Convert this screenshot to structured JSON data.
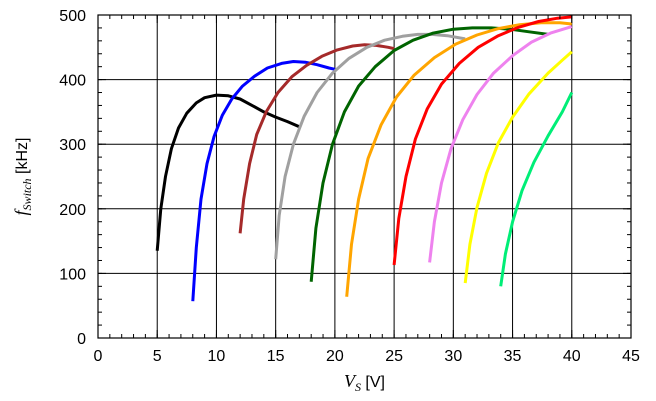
{
  "chart_data": {
    "type": "line",
    "title": "",
    "xlabel": {
      "main": "V",
      "sub": "S",
      "unit": " [V]"
    },
    "ylabel": {
      "main": "f",
      "sub": "Switch",
      "unit": " [kHz]"
    },
    "xlim": [
      0,
      45
    ],
    "ylim": [
      0,
      500
    ],
    "xticks": [
      0,
      5,
      10,
      15,
      20,
      25,
      30,
      35,
      40,
      45
    ],
    "yticks": [
      0,
      100,
      200,
      300,
      400,
      500
    ],
    "grid": true,
    "legend": "none",
    "series": [
      {
        "color": "#000000",
        "x": [
          5,
          5.3,
          5.7,
          6.2,
          6.8,
          7.5,
          8.3,
          9.0,
          10.0,
          11.0,
          12.0,
          13.0,
          14.0,
          15.0,
          16.0,
          17.0
        ],
        "y": [
          135,
          200,
          250,
          293,
          325,
          348,
          364,
          372,
          376,
          375,
          370,
          360,
          350,
          342,
          335,
          327
        ]
      },
      {
        "color": "#0000ff",
        "x": [
          8,
          8.3,
          8.7,
          9.2,
          9.8,
          10.5,
          11.3,
          12.2,
          13.2,
          14.3,
          15.5,
          16.5,
          17.5,
          18.5,
          19.5,
          20.0
        ],
        "y": [
          57,
          140,
          215,
          270,
          312,
          345,
          370,
          390,
          405,
          418,
          425,
          428,
          427,
          423,
          418,
          416
        ]
      },
      {
        "color": "#a52a2a",
        "x": [
          12,
          12.3,
          12.8,
          13.4,
          14.2,
          15.2,
          16.4,
          17.6,
          18.9,
          20.2,
          21.5,
          22.5,
          23.5,
          24.5,
          25.0
        ],
        "y": [
          162,
          215,
          270,
          315,
          350,
          380,
          405,
          422,
          436,
          446,
          452,
          454,
          453,
          450,
          448
        ]
      },
      {
        "color": "#a0a0a0",
        "x": [
          15,
          15.3,
          15.8,
          16.5,
          17.4,
          18.5,
          19.8,
          21.2,
          22.7,
          24.2,
          25.7,
          27.0,
          28.2,
          29.5,
          31.0
        ],
        "y": [
          122,
          190,
          250,
          300,
          343,
          380,
          410,
          433,
          450,
          461,
          467,
          470,
          470,
          468,
          463
        ]
      },
      {
        "color": "#006400",
        "x": [
          18,
          18.4,
          19.0,
          19.8,
          20.8,
          22.0,
          23.4,
          25.0,
          26.6,
          28.3,
          30.0,
          31.6,
          33.2,
          34.8,
          36.4,
          38.0
        ],
        "y": [
          87,
          170,
          240,
          300,
          350,
          390,
          420,
          445,
          461,
          472,
          478,
          480,
          480,
          478,
          474,
          470
        ]
      },
      {
        "color": "#ffa500",
        "x": [
          21,
          21.4,
          22.0,
          22.8,
          23.9,
          25.2,
          26.7,
          28.4,
          30.2,
          32.0,
          33.8,
          35.6,
          37.4,
          39.0,
          40.0
        ],
        "y": [
          64,
          145,
          215,
          278,
          330,
          373,
          407,
          434,
          455,
          469,
          479,
          485,
          488,
          488,
          486
        ]
      },
      {
        "color": "#ff0000",
        "x": [
          25,
          25.4,
          26.0,
          26.8,
          27.8,
          29.0,
          30.5,
          32.1,
          33.8,
          35.5,
          37.2,
          38.8,
          40.0
        ],
        "y": [
          113,
          185,
          250,
          308,
          355,
          393,
          425,
          450,
          468,
          481,
          490,
          495,
          497
        ]
      },
      {
        "color": "#ee82ee",
        "x": [
          28,
          28.4,
          29.0,
          29.8,
          30.8,
          32.0,
          33.4,
          35.0,
          36.6,
          38.2,
          40.0
        ],
        "y": [
          117,
          180,
          240,
          293,
          338,
          377,
          410,
          437,
          458,
          472,
          482
        ]
      },
      {
        "color": "#ffff00",
        "x": [
          31,
          31.4,
          32.0,
          32.8,
          33.8,
          35.0,
          36.4,
          38.0,
          39.2,
          40.0
        ],
        "y": [
          85,
          145,
          202,
          255,
          302,
          342,
          378,
          410,
          430,
          443
        ]
      },
      {
        "color": "#00ee77",
        "x": [
          34,
          34.4,
          35.0,
          35.8,
          36.8,
          38.0,
          39.2,
          40.0
        ],
        "y": [
          80,
          130,
          180,
          228,
          272,
          313,
          350,
          380
        ]
      }
    ]
  }
}
